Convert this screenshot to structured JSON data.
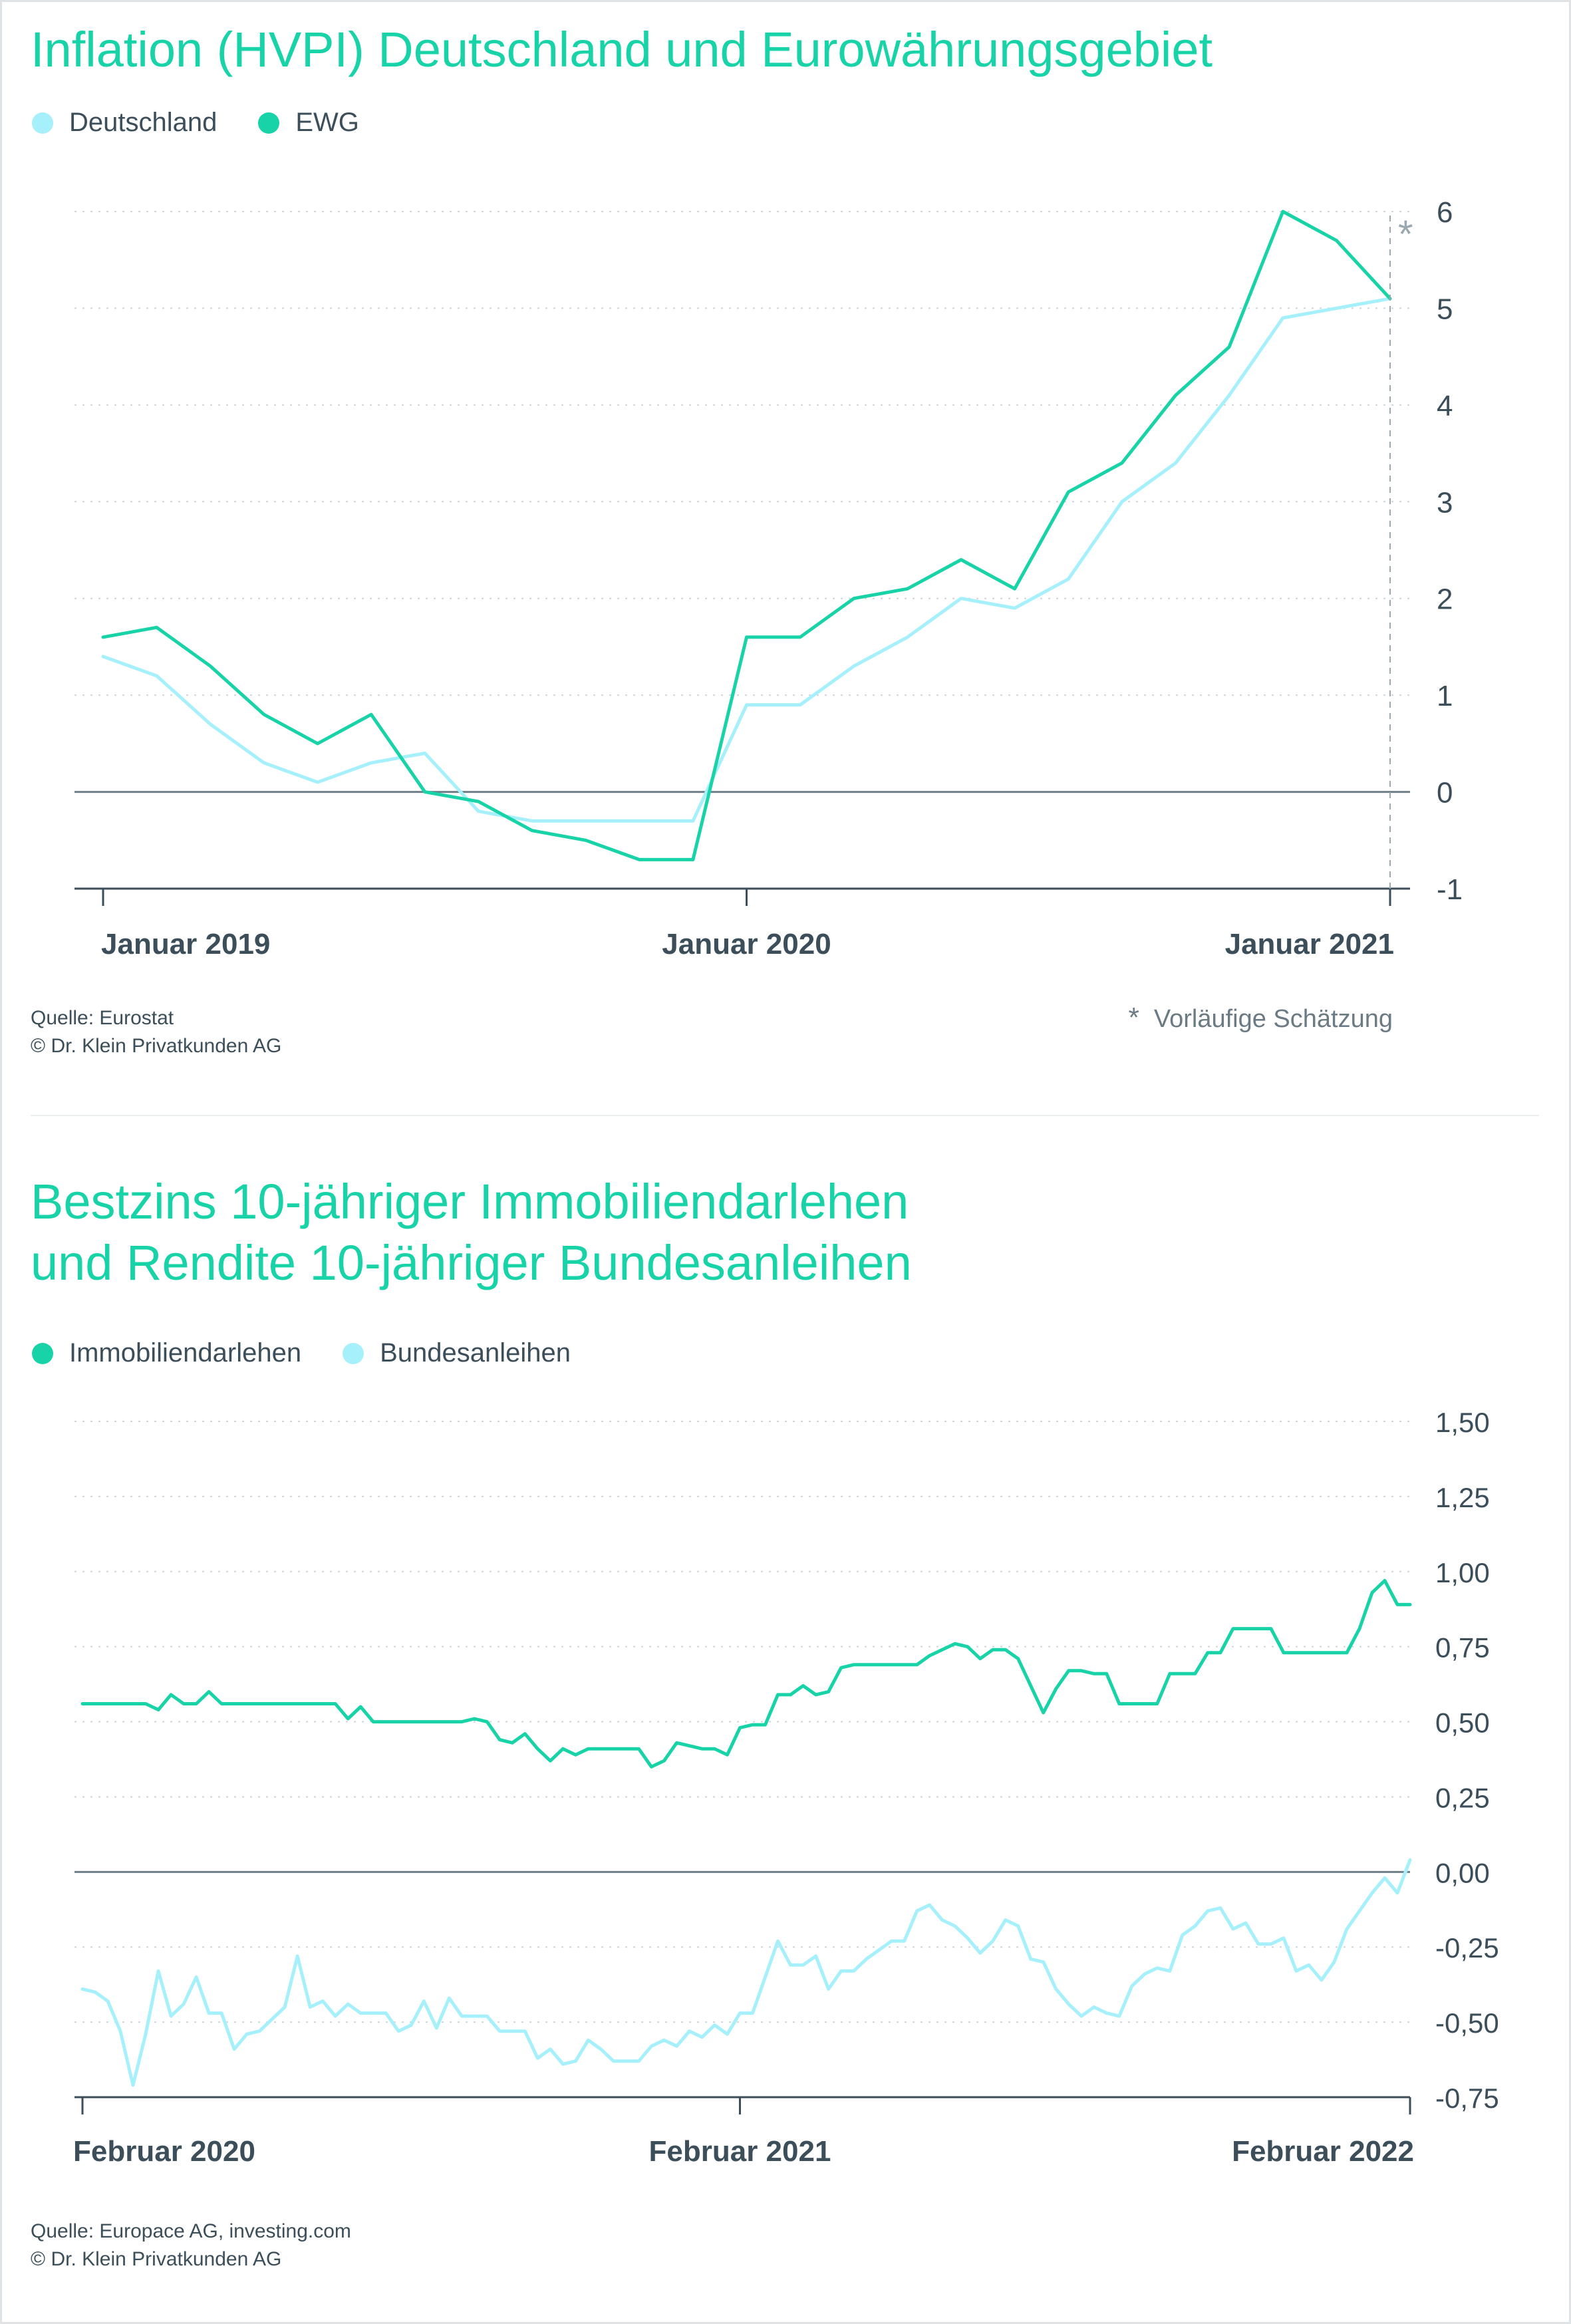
{
  "colors": {
    "title": "#19d3a8",
    "deutschland": "#a6f0fb",
    "ewg": "#19d3a8",
    "immobilien": "#19d3a8",
    "bundes": "#a6f0fb",
    "axis": "#3b4e5a",
    "grid": "#cfd6da"
  },
  "chart1": {
    "title": "Inflation (HVPI) Deutschland und Eurowährungsgebiet",
    "legend": [
      {
        "name": "Deutschland",
        "color": "#a6f0fb"
      },
      {
        "name": "EWG",
        "color": "#19d3a8"
      }
    ],
    "source_lines": [
      "Quelle: Eurostat",
      "© Dr. Klein Privatkunden AG"
    ],
    "footnote_marker": "*",
    "footnote_text": "Vorläufige Schätzung",
    "estimate_marker": "*"
  },
  "chart2": {
    "title_lines": [
      "Bestzins 10-jähriger Immobiliendarlehen",
      "und Rendite 10-jähriger Bundesanleihen"
    ],
    "legend": [
      {
        "name": "Immobiliendarlehen",
        "color": "#19d3a8"
      },
      {
        "name": "Bundesanleihen",
        "color": "#a6f0fb"
      }
    ],
    "source_lines": [
      "Quelle: Europace AG, investing.com",
      "© Dr. Klein Privatkunden AG"
    ]
  },
  "chart_data": [
    {
      "type": "line",
      "title": "Inflation (HVPI) Deutschland und Eurowährungsgebiet",
      "x_tick_labels": [
        "Januar 2019",
        "Januar 2020",
        "Januar 2021"
      ],
      "x_tick_index": [
        0,
        12,
        24
      ],
      "y_ticks": [
        "6",
        "5",
        "4",
        "3",
        "2",
        "1",
        "0",
        "-1"
      ],
      "ylim": [
        -1,
        6
      ],
      "grid": true,
      "legend_position": "top-left",
      "series": [
        {
          "name": "Deutschland",
          "color": "#a6f0fb",
          "values": [
            1.4,
            1.2,
            0.7,
            0.3,
            0.1,
            0.3,
            0.4,
            -0.2,
            -0.3,
            -0.3,
            -0.3,
            -0.3,
            0.9,
            0.9,
            1.3,
            1.6,
            2.0,
            1.9,
            2.2,
            3.0,
            3.4,
            4.1,
            4.9,
            5.0,
            5.1
          ]
        },
        {
          "name": "EWG",
          "color": "#19d3a8",
          "values": [
            1.6,
            1.7,
            1.3,
            0.8,
            0.5,
            0.8,
            0.0,
            -0.1,
            -0.4,
            -0.5,
            -0.7,
            -0.7,
            1.6,
            1.6,
            2.0,
            2.1,
            2.4,
            2.1,
            3.1,
            3.4,
            4.1,
            4.6,
            6.0,
            5.7,
            5.1
          ]
        }
      ],
      "annotation": "*"
    },
    {
      "type": "line",
      "title": "Bestzins 10-jähriger Immobiliendarlehen und Rendite 10-jähriger Bundesanleihen",
      "x_tick_labels": [
        "Februar 2020",
        "Februar 2021",
        "Februar 2022"
      ],
      "x_tick_index": [
        0,
        52,
        105
      ],
      "y_ticks": [
        "1,50",
        "1,25",
        "1,00",
        "0,75",
        "0,50",
        "0,25",
        "0,00",
        "-0,25",
        "-0,50",
        "-0,75"
      ],
      "ylim": [
        -0.75,
        1.5
      ],
      "grid": true,
      "legend_position": "top-left",
      "series": [
        {
          "name": "Immobiliendarlehen",
          "color": "#19d3a8",
          "values": [
            0.56,
            0.56,
            0.56,
            0.56,
            0.56,
            0.56,
            0.54,
            0.59,
            0.56,
            0.56,
            0.6,
            0.56,
            0.56,
            0.56,
            0.56,
            0.56,
            0.56,
            0.56,
            0.56,
            0.56,
            0.56,
            0.51,
            0.55,
            0.5,
            0.5,
            0.5,
            0.5,
            0.5,
            0.5,
            0.5,
            0.5,
            0.51,
            0.5,
            0.44,
            0.43,
            0.46,
            0.41,
            0.37,
            0.41,
            0.39,
            0.41,
            0.41,
            0.41,
            0.41,
            0.41,
            0.35,
            0.37,
            0.43,
            0.42,
            0.41,
            0.41,
            0.39,
            0.48,
            0.49,
            0.49,
            0.59,
            0.59,
            0.62,
            0.59,
            0.6,
            0.68,
            0.69,
            0.69,
            0.69,
            0.69,
            0.69,
            0.69,
            0.72,
            0.74,
            0.76,
            0.75,
            0.71,
            0.74,
            0.74,
            0.71,
            0.62,
            0.53,
            0.61,
            0.67,
            0.67,
            0.66,
            0.66,
            0.56,
            0.56,
            0.56,
            0.56,
            0.66,
            0.66,
            0.66,
            0.73,
            0.73,
            0.81,
            0.81,
            0.81,
            0.81,
            0.73,
            0.73,
            0.73,
            0.73,
            0.73,
            0.73,
            0.81,
            0.93,
            0.97,
            0.89,
            0.89
          ]
        },
        {
          "name": "Bundesanleihen",
          "color": "#a6f0fb",
          "values": [
            -0.39,
            -0.4,
            -0.43,
            -0.53,
            -0.71,
            -0.54,
            -0.33,
            -0.48,
            -0.44,
            -0.35,
            -0.47,
            -0.47,
            -0.59,
            -0.54,
            -0.53,
            -0.49,
            -0.45,
            -0.28,
            -0.45,
            -0.43,
            -0.48,
            -0.44,
            -0.47,
            -0.47,
            -0.47,
            -0.53,
            -0.51,
            -0.43,
            -0.52,
            -0.42,
            -0.48,
            -0.48,
            -0.48,
            -0.53,
            -0.53,
            -0.53,
            -0.62,
            -0.59,
            -0.64,
            -0.63,
            -0.56,
            -0.59,
            -0.63,
            -0.63,
            -0.63,
            -0.58,
            -0.56,
            -0.58,
            -0.53,
            -0.55,
            -0.51,
            -0.54,
            -0.47,
            -0.47,
            -0.35,
            -0.23,
            -0.31,
            -0.31,
            -0.28,
            -0.39,
            -0.33,
            -0.33,
            -0.29,
            -0.26,
            -0.23,
            -0.23,
            -0.13,
            -0.11,
            -0.16,
            -0.18,
            -0.22,
            -0.27,
            -0.23,
            -0.16,
            -0.18,
            -0.29,
            -0.3,
            -0.39,
            -0.44,
            -0.48,
            -0.45,
            -0.47,
            -0.48,
            -0.38,
            -0.34,
            -0.32,
            -0.33,
            -0.21,
            -0.18,
            -0.13,
            -0.12,
            -0.19,
            -0.17,
            -0.24,
            -0.24,
            -0.22,
            -0.33,
            -0.31,
            -0.36,
            -0.3,
            -0.19,
            -0.13,
            -0.07,
            -0.02,
            -0.07,
            0.04
          ]
        }
      ]
    }
  ]
}
